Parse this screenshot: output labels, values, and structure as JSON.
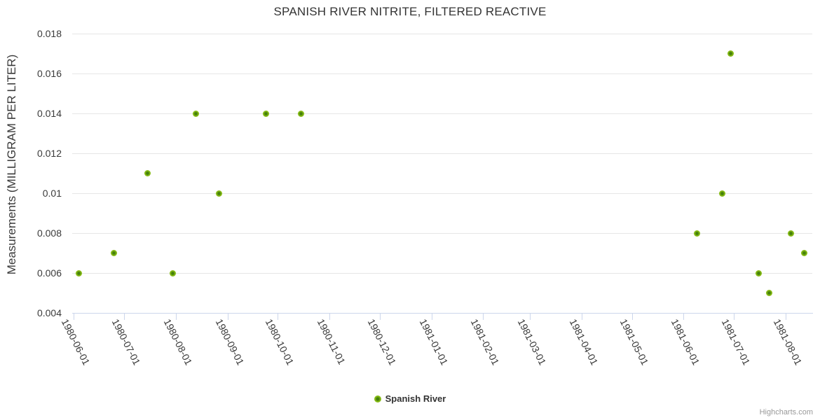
{
  "chart_data": {
    "type": "scatter",
    "title": "SPANISH RIVER NITRITE, FILTERED REACTIVE",
    "xlabel": "",
    "ylabel": "Measurements (MILLIGRAM PER LITER)",
    "xlim": [
      "1980-05-31",
      "1981-08-17"
    ],
    "ylim": [
      0.004,
      0.018
    ],
    "x_ticks": [
      "1980-06-01",
      "1980-07-01",
      "1980-08-01",
      "1980-09-01",
      "1980-10-01",
      "1980-11-01",
      "1980-12-01",
      "1981-01-01",
      "1981-02-01",
      "1981-03-01",
      "1981-04-01",
      "1981-05-01",
      "1981-06-01",
      "1981-07-01",
      "1981-08-01"
    ],
    "y_ticks": [
      "0.004",
      "0.006",
      "0.008",
      "0.01",
      "0.012",
      "0.014",
      "0.016",
      "0.018"
    ],
    "grid": "horizontal-only",
    "legend_position": "bottom-center",
    "series": [
      {
        "name": "Spanish River",
        "color": "#8bbc21",
        "marker_center_color": "#45810b",
        "points": [
          {
            "x": "1980-06-04",
            "y": 0.006
          },
          {
            "x": "1980-06-25",
            "y": 0.007
          },
          {
            "x": "1980-07-15",
            "y": 0.011
          },
          {
            "x": "1980-07-30",
            "y": 0.006
          },
          {
            "x": "1980-08-13",
            "y": 0.014
          },
          {
            "x": "1980-08-27",
            "y": 0.01
          },
          {
            "x": "1980-09-24",
            "y": 0.014
          },
          {
            "x": "1980-10-15",
            "y": 0.014
          },
          {
            "x": "1981-06-09",
            "y": 0.008
          },
          {
            "x": "1981-06-24",
            "y": 0.01
          },
          {
            "x": "1981-06-29",
            "y": 0.017
          },
          {
            "x": "1981-07-16",
            "y": 0.006
          },
          {
            "x": "1981-07-22",
            "y": 0.005
          },
          {
            "x": "1981-08-04",
            "y": 0.008
          },
          {
            "x": "1981-08-12",
            "y": 0.007
          }
        ]
      }
    ]
  },
  "credits": "Highcharts.com",
  "colors": {
    "background": "#ffffff",
    "grid_line": "#e6e6e6",
    "axis_line": "#ccd6eb",
    "text": "#333333",
    "credits_text": "#999999"
  }
}
